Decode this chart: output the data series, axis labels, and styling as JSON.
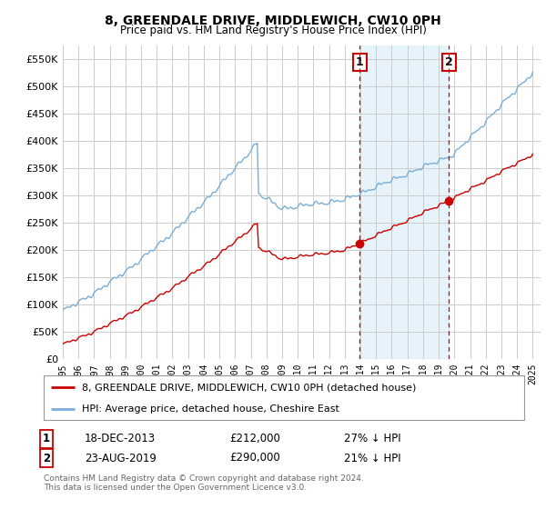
{
  "title": "8, GREENDALE DRIVE, MIDDLEWICH, CW10 0PH",
  "subtitle": "Price paid vs. HM Land Registry's House Price Index (HPI)",
  "red_label": "8, GREENDALE DRIVE, MIDDLEWICH, CW10 0PH (detached house)",
  "blue_label": "HPI: Average price, detached house, Cheshire East",
  "transaction1": {
    "num": "1",
    "date": "18-DEC-2013",
    "price": "£212,000",
    "hpi": "27% ↓ HPI",
    "year": 2013.96
  },
  "transaction2": {
    "num": "2",
    "date": "23-AUG-2019",
    "price": "£290,000",
    "hpi": "21% ↓ HPI",
    "year": 2019.64
  },
  "footnote1": "Contains HM Land Registry data © Crown copyright and database right 2024.",
  "footnote2": "This data is licensed under the Open Government Licence v3.0.",
  "ylim": [
    0,
    575000
  ],
  "yticks": [
    0,
    50000,
    100000,
    150000,
    200000,
    250000,
    300000,
    350000,
    400000,
    450000,
    500000,
    550000
  ],
  "bg_color": "#ffffff",
  "grid_color": "#cccccc",
  "red_color": "#cc0000",
  "blue_line_color": "#7aaed6",
  "marker1_year": 2013.96,
  "marker1_red_val": 212000,
  "marker2_year": 2019.64,
  "marker2_red_val": 290000,
  "marker_box_color": "#cc0000",
  "shaded_color": "#dceef8",
  "shaded_alpha": 0.7
}
